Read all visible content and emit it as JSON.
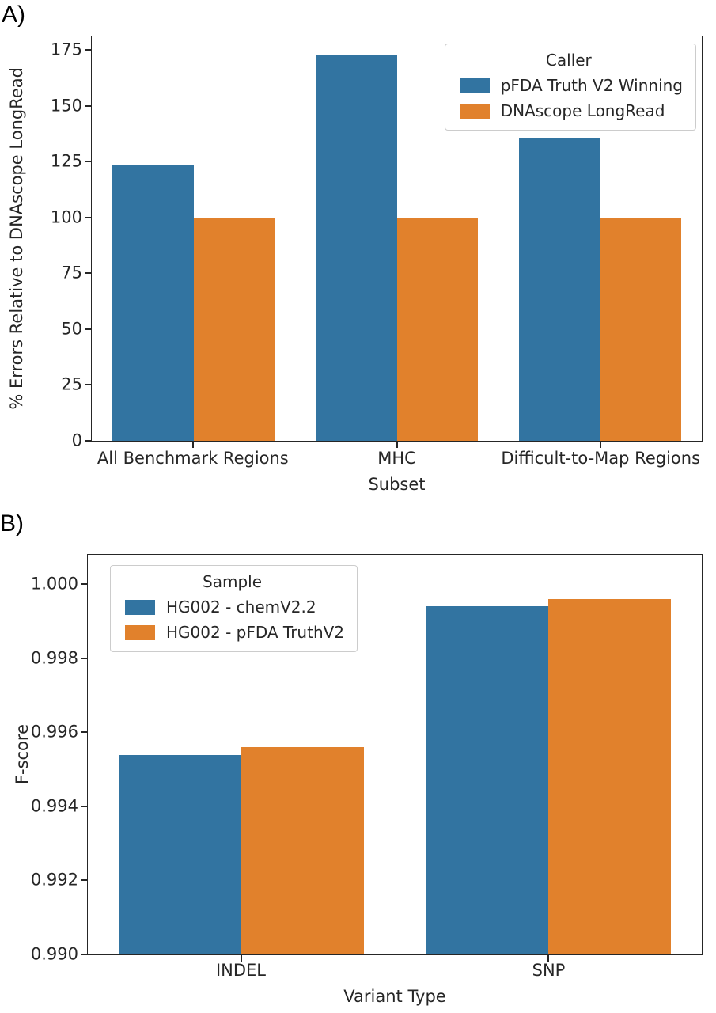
{
  "panels": [
    {
      "label": "A)"
    },
    {
      "label": "B)"
    }
  ],
  "chart_data": [
    {
      "type": "bar",
      "categories": [
        "All Benchmark Regions",
        "MHC",
        "Difficult-to-Map Regions"
      ],
      "series": [
        {
          "name": "pFDA Truth V2 Winning",
          "color": "#3274A1",
          "values": [
            123.5,
            172.5,
            135.5
          ]
        },
        {
          "name": "DNAscope LongRead",
          "color": "#E1812C",
          "values": [
            100,
            100,
            100
          ]
        }
      ],
      "legend": {
        "title": "Caller",
        "position": "top-right"
      },
      "title": "",
      "xlabel": "Subset",
      "ylabel": "% Errors Relative to DNAscope LongRead",
      "ylim": [
        0,
        181
      ],
      "yticks": [
        "0",
        "25",
        "50",
        "75",
        "100",
        "125",
        "150",
        "175"
      ],
      "grid": false
    },
    {
      "type": "bar",
      "categories": [
        "INDEL",
        "SNP"
      ],
      "series": [
        {
          "name": "HG002 - chemV2.2",
          "color": "#3274A1",
          "values": [
            0.9954,
            0.9994
          ]
        },
        {
          "name": "HG002 - pFDA TruthV2",
          "color": "#E1812C",
          "values": [
            0.9956,
            0.9996
          ]
        }
      ],
      "legend": {
        "title": "Sample",
        "position": "top-left"
      },
      "title": "",
      "xlabel": "Variant Type",
      "ylabel": "F-score",
      "ylim": [
        0.99,
        1.0008
      ],
      "yticks": [
        "0.990",
        "0.992",
        "0.994",
        "0.996",
        "0.998",
        "1.000"
      ],
      "grid": false
    }
  ]
}
